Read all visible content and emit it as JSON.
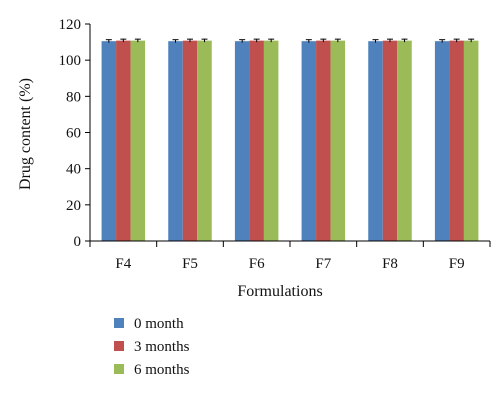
{
  "chart_data": {
    "type": "bar",
    "title": "",
    "xlabel": "Formulations",
    "ylabel": "Drug content (%)",
    "ylim": [
      0,
      120
    ],
    "yticks": [
      0,
      20,
      40,
      60,
      80,
      100,
      120
    ],
    "categories": [
      "F4",
      "F5",
      "F6",
      "F7",
      "F8",
      "F9"
    ],
    "series": [
      {
        "name": "0 month",
        "color": "#4F81BD",
        "values": [
          110.5,
          110.5,
          110.5,
          110.5,
          110.5,
          110.5
        ]
      },
      {
        "name": "3 months",
        "color": "#C0504D",
        "values": [
          110.8,
          110.8,
          110.8,
          110.8,
          110.8,
          110.8
        ]
      },
      {
        "name": "6 months",
        "color": "#9BBB59",
        "values": [
          110.8,
          110.8,
          110.8,
          110.8,
          110.8,
          110.8
        ]
      }
    ],
    "error_bars": true,
    "grid": false,
    "legend_position": "bottom-left"
  }
}
